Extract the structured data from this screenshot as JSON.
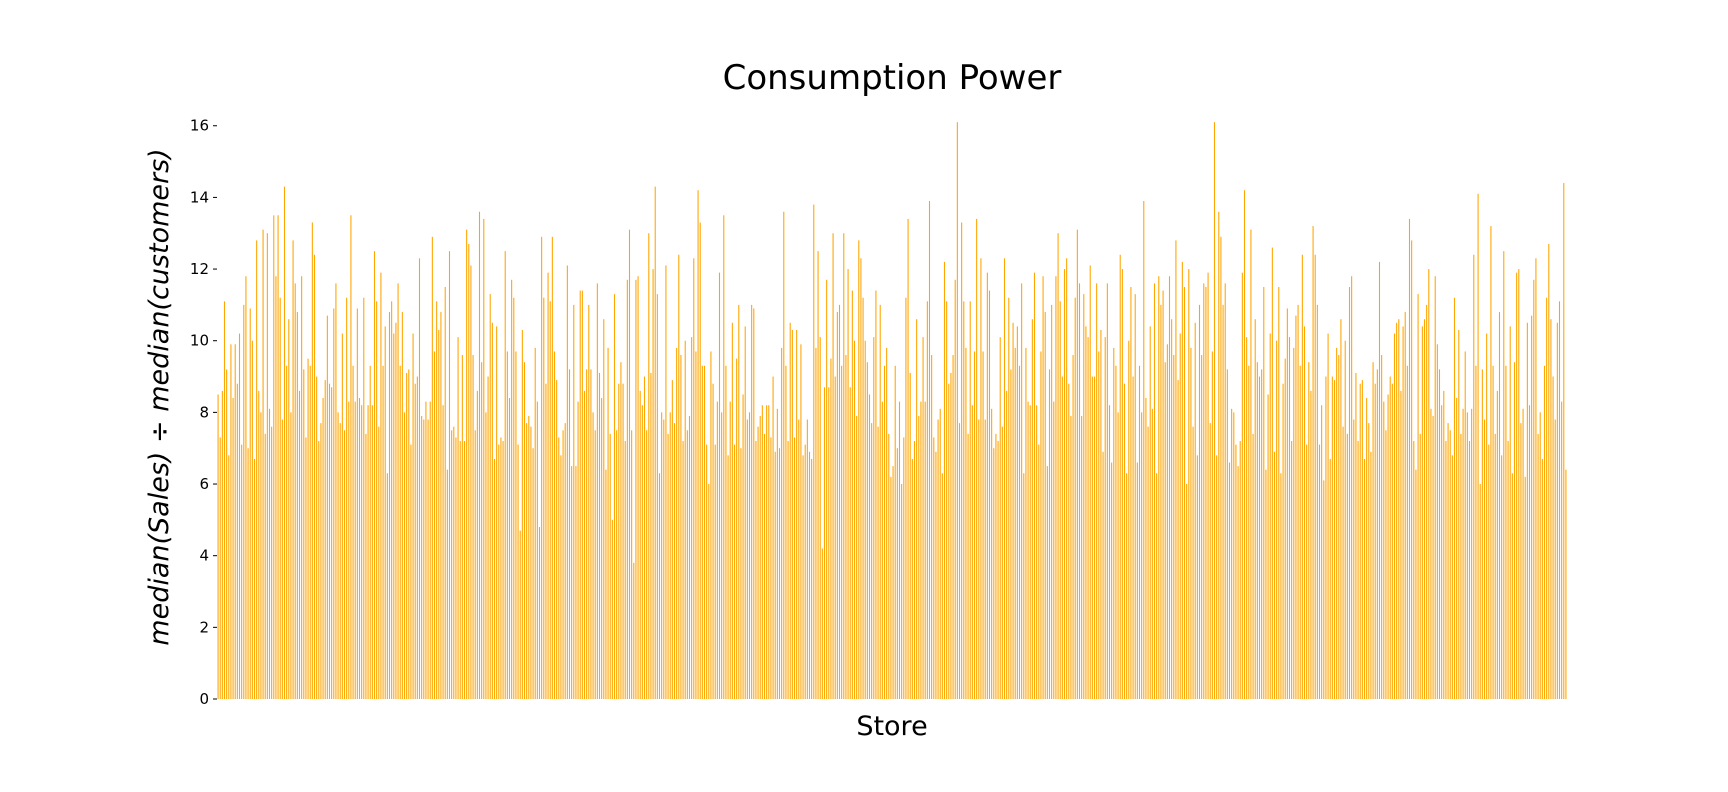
{
  "chart_data": {
    "type": "bar",
    "title": "Consumption Power",
    "xlabel": "Store",
    "ylabel": "median(Sales) ÷ median(customers)",
    "ylim": [
      0,
      16.3
    ],
    "yticks": [
      0,
      2,
      4,
      6,
      8,
      10,
      12,
      14,
      16
    ],
    "grid": false,
    "legend": "none",
    "bar_color": "#FFA500",
    "values": [
      8.5,
      7.3,
      8.6,
      11.1,
      9.2,
      6.8,
      9.9,
      8.4,
      9.9,
      8.8,
      10.2,
      7.1,
      11.0,
      11.8,
      7.0,
      10.9,
      10.0,
      6.7,
      12.8,
      8.6,
      8.0,
      13.1,
      7.4,
      13.0,
      8.1,
      7.6,
      13.5,
      11.8,
      13.5,
      11.2,
      7.8,
      14.3,
      9.3,
      10.6,
      8.0,
      12.8,
      11.6,
      10.8,
      8.6,
      11.8,
      9.2,
      7.3,
      9.5,
      9.3,
      13.3,
      12.4,
      9.0,
      7.2,
      7.7,
      8.4,
      8.9,
      10.7,
      8.8,
      8.7,
      10.9,
      11.6,
      8.0,
      7.7,
      10.2,
      7.5,
      11.2,
      8.3,
      13.5,
      9.3,
      8.3,
      10.9,
      8.4,
      8.2,
      11.2,
      7.4,
      8.2,
      9.3,
      8.2,
      12.5,
      11.1,
      7.6,
      11.9,
      9.3,
      10.4,
      6.3,
      10.8,
      11.1,
      10.2,
      10.5,
      11.6,
      9.3,
      10.8,
      8.0,
      9.1,
      9.2,
      7.1,
      10.2,
      8.8,
      9.0,
      12.3,
      7.9,
      7.8,
      8.3,
      7.8,
      8.3,
      12.9,
      9.7,
      11.1,
      10.3,
      10.8,
      8.2,
      11.5,
      6.4,
      12.5,
      7.5,
      7.6,
      7.3,
      10.1,
      7.2,
      9.6,
      7.2,
      13.1,
      12.7,
      12.1,
      9.6,
      7.5,
      8.6,
      13.6,
      9.4,
      13.4,
      8.0,
      9.0,
      11.3,
      10.5,
      6.7,
      10.4,
      7.1,
      7.3,
      7.2,
      12.5,
      9.7,
      8.4,
      11.7,
      11.2,
      9.7,
      7.1,
      4.7,
      10.3,
      9.4,
      7.7,
      7.9,
      7.6,
      7.0,
      9.8,
      8.3,
      4.8,
      12.9,
      11.2,
      8.8,
      11.9,
      11.1,
      12.9,
      9.7,
      8.9,
      7.3,
      6.8,
      7.5,
      7.7,
      12.1,
      9.2,
      6.5,
      11.0,
      6.5,
      8.3,
      11.4,
      11.4,
      8.6,
      9.2,
      11.0,
      9.2,
      8.0,
      7.5,
      11.6,
      9.1,
      8.4,
      10.6,
      6.4,
      9.8,
      7.4,
      5.0,
      11.3,
      7.5,
      8.8,
      9.4,
      8.8,
      7.2,
      11.7,
      13.1,
      7.5,
      3.8,
      11.7,
      11.8,
      8.6,
      8.2,
      9.0,
      7.5,
      13.0,
      9.1,
      12.0,
      14.3,
      11.3,
      6.3,
      8.0,
      7.8,
      12.1,
      7.4,
      8.0,
      8.9,
      7.7,
      9.8,
      12.4,
      9.6,
      7.2,
      10.0,
      7.5,
      7.9,
      10.1,
      12.3,
      9.7,
      14.2,
      13.3,
      9.3,
      9.3,
      7.1,
      6.0,
      9.7,
      8.8,
      7.1,
      8.3,
      11.9,
      8.0,
      13.5,
      9.3,
      6.8,
      8.3,
      10.5,
      7.1,
      9.5,
      11.0,
      7.0,
      8.5,
      10.4,
      7.8,
      8.0,
      11.0,
      10.9,
      7.2,
      7.6,
      7.9,
      8.2,
      7.4,
      8.2,
      8.2,
      7.3,
      9.0,
      6.9,
      8.1,
      7.0,
      9.8,
      13.6,
      9.3,
      7.2,
      10.5,
      10.3,
      7.3,
      10.3,
      7.8,
      9.9,
      6.8,
      7.1,
      7.8,
      6.9,
      6.7,
      13.8,
      9.8,
      12.5,
      10.1,
      4.2,
      8.7,
      11.7,
      8.7,
      9.5,
      13.0,
      9.0,
      10.8,
      11.0,
      9.3,
      13.0,
      9.6,
      12.0,
      8.7,
      11.4,
      10.0,
      7.9,
      12.8,
      12.3,
      11.2,
      10.0,
      9.4,
      8.5,
      7.7,
      10.1,
      11.4,
      7.6,
      11.0,
      8.3,
      9.3,
      9.8,
      7.4,
      6.2,
      6.5,
      9.3,
      7.0,
      8.3,
      6.0,
      7.3,
      11.2,
      13.4,
      9.1,
      6.7,
      7.2,
      10.6,
      7.9,
      8.3,
      10.1,
      8.3,
      11.1,
      13.9,
      9.6,
      7.3,
      6.9,
      7.8,
      8.1,
      6.3,
      12.2,
      11.1,
      8.8,
      9.1,
      9.6,
      11.7,
      16.1,
      7.7,
      13.3,
      11.1,
      9.8,
      7.4,
      11.1,
      8.2,
      9.7,
      13.4,
      7.8,
      12.3,
      9.7,
      7.8,
      11.9,
      11.4,
      8.1,
      7.0,
      7.4,
      7.2,
      10.1,
      7.6,
      12.3,
      8.6,
      11.2,
      9.2,
      10.5,
      9.8,
      10.4,
      9.3,
      11.6,
      6.3,
      9.8,
      8.3,
      8.2,
      10.6,
      11.9,
      8.2,
      7.1,
      9.7,
      11.8,
      10.8,
      6.5,
      9.2,
      11.0,
      8.3,
      11.8,
      13.0,
      11.1,
      9.0,
      12.0,
      12.3,
      8.8,
      7.9,
      9.6,
      11.2,
      13.1,
      11.6,
      7.9,
      11.3,
      10.4,
      10.1,
      12.1,
      9.0,
      9.0,
      11.6,
      9.7,
      10.3,
      6.9,
      10.1,
      11.6,
      8.2,
      6.6,
      9.8,
      9.3,
      8.0,
      12.4,
      12.0,
      8.8,
      6.3,
      10.0,
      11.5,
      9.0,
      11.3,
      6.6,
      9.3,
      8.0,
      13.9,
      8.4,
      7.6,
      10.4,
      8.1,
      11.6,
      6.3,
      11.8,
      11.0,
      11.4,
      9.4,
      9.9,
      11.8,
      10.6,
      9.6,
      12.8,
      8.9,
      10.2,
      12.2,
      11.5,
      6.0,
      12.0,
      9.8,
      7.6,
      10.5,
      6.8,
      11.0,
      9.6,
      11.6,
      11.5,
      11.9,
      7.7,
      9.7,
      16.1,
      6.8,
      13.6,
      12.9,
      11.0,
      11.6,
      9.2,
      6.6,
      8.1,
      8.0,
      7.1,
      6.5,
      7.2,
      11.9,
      14.2,
      10.1,
      9.3,
      13.1,
      7.4,
      10.6,
      9.4,
      9.0,
      9.2,
      11.5,
      6.4,
      8.5,
      10.2,
      12.6,
      6.9,
      10.0,
      11.5,
      6.3,
      8.8,
      9.5,
      10.9,
      10.1,
      7.2,
      9.8,
      10.7,
      11.0,
      9.3,
      12.4,
      10.4,
      7.1,
      9.4,
      8.6,
      13.2,
      12.4,
      11.0,
      7.1,
      8.2,
      6.1,
      9.0,
      10.2,
      6.7,
      9.0,
      8.9,
      9.8,
      9.6,
      10.6,
      7.6,
      10.0,
      7.4,
      11.5,
      11.8,
      7.8,
      9.1,
      7.2,
      8.8,
      8.9,
      6.7,
      8.4,
      7.7,
      6.9,
      9.4,
      8.8,
      9.2,
      12.2,
      9.6,
      8.3,
      7.5,
      8.5,
      9.0,
      8.8,
      10.2,
      10.5,
      10.6,
      8.6,
      10.4,
      10.8,
      9.3,
      13.4,
      12.8,
      7.2,
      6.4,
      11.3,
      7.4,
      10.4,
      10.6,
      11.0,
      12.0,
      8.1,
      7.9,
      11.8,
      9.9,
      9.2,
      8.2,
      8.6,
      7.2,
      7.7,
      7.5,
      6.8,
      11.2,
      8.4,
      10.3,
      7.4,
      8.1,
      9.7,
      8.0,
      7.2,
      8.1,
      12.4,
      9.3,
      14.1,
      6.0,
      9.2,
      7.8,
      10.2,
      7.1,
      13.2,
      9.3,
      7.4,
      8.6,
      10.8,
      6.8,
      12.5,
      9.3,
      7.2,
      10.4,
      6.3,
      9.4,
      11.9,
      12.0,
      7.7,
      8.1,
      6.2,
      10.5,
      8.2,
      10.7,
      11.7,
      12.3,
      7.4,
      8.0,
      6.7,
      9.3,
      11.2,
      12.7,
      10.6,
      9.0,
      7.8,
      10.5,
      11.1,
      8.3,
      14.4,
      6.4
    ]
  }
}
